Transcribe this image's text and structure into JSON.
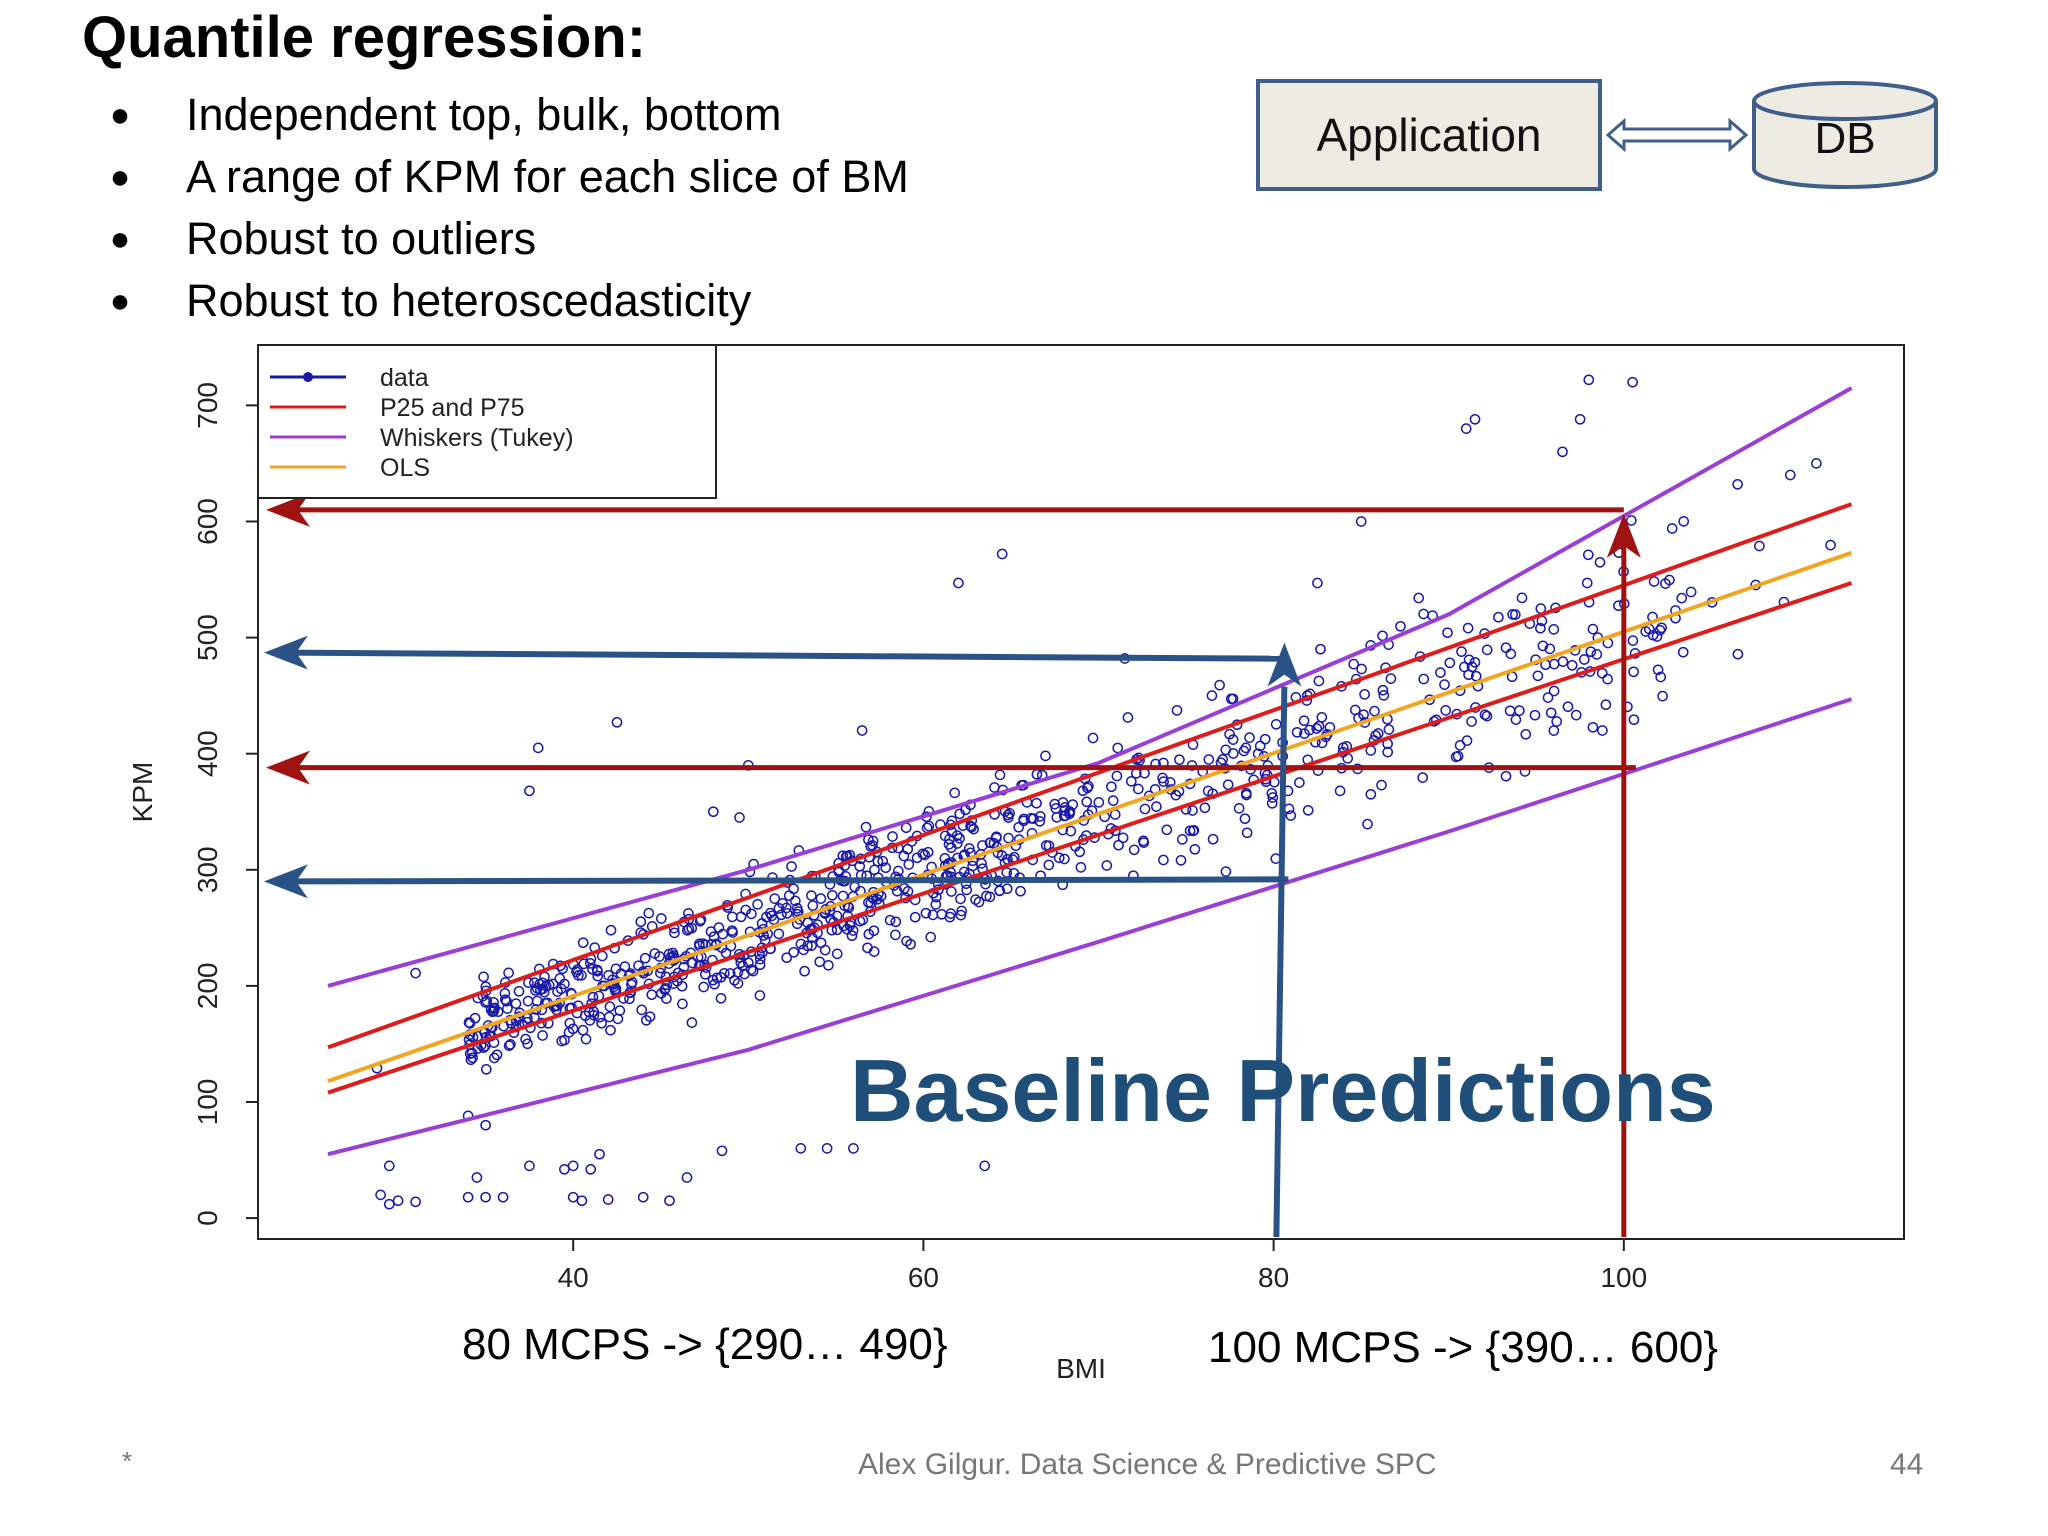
{
  "slide": {
    "title": "Quantile regression:",
    "bullets": [
      "Independent top, bulk, bottom",
      "A range of KPM for each slice of BM",
      "Robust to outliers",
      "Robust to heteroscedasticity"
    ],
    "bullet_symbol": "●"
  },
  "diagram": {
    "application_label": "Application",
    "db_label": "DB"
  },
  "chart_data": {
    "type": "scatter",
    "xlabel": "BMI",
    "ylabel": "KPM",
    "xlim": [
      22,
      116
    ],
    "ylim": [
      -18,
      752
    ],
    "x_ticks": [
      40,
      60,
      80,
      100
    ],
    "y_ticks": [
      0,
      100,
      200,
      300,
      400,
      500,
      600,
      700
    ],
    "legend": {
      "placement": "top-left",
      "entries": [
        "data",
        "P25 and P75",
        "Whiskers (Tukey)",
        "OLS"
      ]
    },
    "colors": {
      "data": "#1a1aa8",
      "p25_p75": "#dd1c1c",
      "whiskers": "#9a3fd6",
      "ols": "#f0a623",
      "red_arrow": "#a01212",
      "blue_arrow": "#2b5286"
    },
    "lines": [
      {
        "name": "OLS",
        "color": "#f0a623",
        "x": [
          26,
          113
        ],
        "y": [
          118,
          573
        ]
      },
      {
        "name": "P25",
        "color": "#dd1c1c",
        "x": [
          26,
          113
        ],
        "y": [
          108,
          547
        ]
      },
      {
        "name": "P75",
        "color": "#dd1c1c",
        "x": [
          26,
          113
        ],
        "y": [
          147,
          615
        ]
      },
      {
        "name": "Whisker low",
        "color": "#9a3fd6",
        "x": [
          26,
          50,
          70,
          90,
          113
        ],
        "y": [
          55,
          145,
          238,
          333,
          447
        ]
      },
      {
        "name": "Whisker high",
        "color": "#9a3fd6",
        "x": [
          26,
          50,
          70,
          90,
          113
        ],
        "y": [
          200,
          300,
          392,
          520,
          715
        ]
      }
    ],
    "outliers": [
      [
        98,
        722
      ],
      [
        100.5,
        720
      ],
      [
        91.5,
        688
      ],
      [
        91,
        680
      ],
      [
        97.5,
        688
      ],
      [
        96.5,
        660
      ],
      [
        111,
        650
      ],
      [
        106.5,
        632
      ],
      [
        85,
        600
      ],
      [
        64.5,
        572
      ],
      [
        62,
        547
      ],
      [
        82.5,
        547
      ],
      [
        38,
        405
      ],
      [
        42.5,
        427
      ],
      [
        37.5,
        368
      ],
      [
        31,
        211
      ],
      [
        29.5,
        45
      ],
      [
        29,
        20
      ],
      [
        29.5,
        12
      ],
      [
        31,
        14
      ],
      [
        30,
        15
      ],
      [
        34,
        18
      ],
      [
        35,
        18
      ],
      [
        36,
        18
      ],
      [
        34.5,
        35
      ],
      [
        37.5,
        45
      ],
      [
        39.5,
        42
      ],
      [
        40,
        45
      ],
      [
        41.5,
        55
      ],
      [
        41,
        42
      ],
      [
        40,
        18
      ],
      [
        40.5,
        15
      ],
      [
        42,
        16
      ],
      [
        44,
        18
      ],
      [
        45.5,
        15
      ],
      [
        46.5,
        35
      ],
      [
        48.5,
        58
      ],
      [
        53,
        60
      ],
      [
        56,
        60
      ],
      [
        34,
        88
      ],
      [
        35,
        80
      ],
      [
        63.5,
        45
      ],
      [
        54.5,
        60
      ],
      [
        50,
        390
      ],
      [
        48,
        350
      ],
      [
        49.5,
        345
      ],
      [
        56.5,
        420
      ],
      [
        71.5,
        482
      ]
    ],
    "scatter_description": "~900 noisy points around KPM = 5.23*BMI - 18 for BMI 26 to 113, spread widening with BMI",
    "annotations": {
      "red_arrows": [
        {
          "label": "P75 level at BMI 100",
          "x_from": 100,
          "y_from": 0,
          "y_to": 610,
          "target_y": 610
        },
        {
          "label": "P25 level at BMI 100",
          "y": 388
        }
      ],
      "blue_arrows": [
        {
          "label": "upper level at BMI 80",
          "y": 487
        },
        {
          "label": "lower level at BMI 80",
          "y": 290
        }
      ],
      "overlay_text": "Baseline Predictions",
      "caption_left": "80 MCPS -> {290… 490}",
      "caption_right": "100 MCPS -> {390… 600}"
    }
  },
  "footer": {
    "marker": "*",
    "text": "Alex Gilgur.  Data Science & Predictive SPC",
    "page": "44"
  }
}
